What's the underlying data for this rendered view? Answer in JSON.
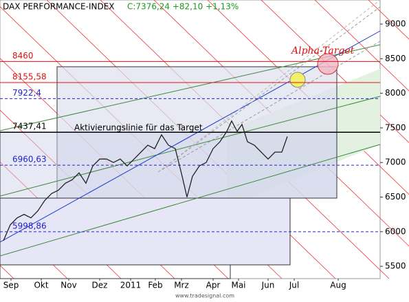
{
  "chart_data": {
    "type": "line",
    "title": "DAX PERFORMANCE-INDEX",
    "subtitle": "C:7376,24 +82,10 +1,13%",
    "source": "www.tradesignal.com",
    "annotations": [
      "Aktivierungslinie für das Target",
      "Alpha-Target"
    ],
    "x": [
      5,
      15,
      25,
      35,
      45,
      55,
      65,
      75,
      85,
      95,
      105,
      115,
      125,
      135,
      145,
      155,
      165,
      175,
      185,
      195,
      205,
      215,
      225,
      235,
      245,
      255,
      265,
      272,
      280,
      290,
      300,
      310,
      320,
      330,
      337,
      345,
      352,
      360,
      370,
      380,
      390,
      400,
      410,
      418
    ],
    "series": [
      {
        "color": "#222222",
        "values": [
          5870,
          6100,
          6200,
          6250,
          6200,
          6300,
          6450,
          6550,
          6600,
          6700,
          6750,
          6850,
          6700,
          6950,
          7050,
          7050,
          7000,
          7050,
          6950,
          7050,
          7150,
          7250,
          7200,
          7400,
          7250,
          7200,
          6800,
          6500,
          6800,
          6950,
          7000,
          7200,
          7300,
          7450,
          7600,
          7450,
          7550,
          7300,
          7250,
          7150,
          7050,
          7150,
          7150,
          7376
        ]
      }
    ],
    "levels": [
      {
        "value": 8460,
        "label": "8460",
        "color": "#dd1111"
      },
      {
        "value": 8155.58,
        "label": "8155,58",
        "color": "#dd1111"
      },
      {
        "value": 7922.4,
        "label": "7922,4",
        "color": "#2222cc"
      },
      {
        "value": 7437.41,
        "label": "7437,41",
        "color": "#000000"
      },
      {
        "value": 6960.63,
        "label": "6960,63",
        "color": "#2222cc"
      },
      {
        "value": 5998.86,
        "label": "5998,86",
        "color": "#2222cc"
      }
    ],
    "xlim": [
      0,
      553
    ],
    "xticks": [
      {
        "value": 16,
        "label": "Sep"
      },
      {
        "value": 60,
        "label": "Okt"
      },
      {
        "value": 100,
        "label": "Nov"
      },
      {
        "value": 145,
        "label": "Dez"
      },
      {
        "value": 190,
        "label": "2011"
      },
      {
        "value": 226,
        "label": "Feb"
      },
      {
        "value": 264,
        "label": "Mrz"
      },
      {
        "value": 310,
        "label": "Apr"
      },
      {
        "value": 347,
        "label": "Mai"
      },
      {
        "value": 390,
        "label": "Jun"
      },
      {
        "value": 428,
        "label": "Jul"
      },
      {
        "value": 492,
        "label": "Aug"
      }
    ],
    "ylim": [
      5322,
      9348
    ],
    "yticks": [
      5500,
      6000,
      6500,
      7000,
      7500,
      8000,
      8500,
      9000
    ]
  }
}
